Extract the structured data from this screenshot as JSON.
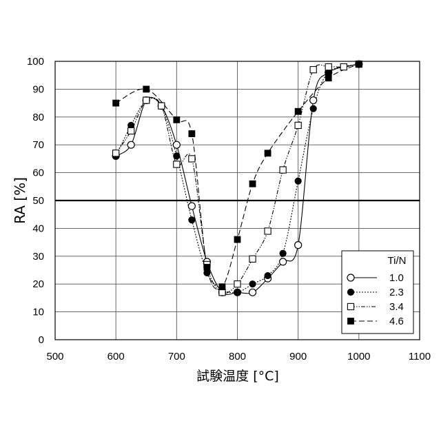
{
  "chart_data": {
    "type": "line",
    "xlabel": "試験温度 [°C]",
    "ylabel": "RA [%]",
    "xlim": [
      500,
      1100
    ],
    "ylim": [
      0,
      100
    ],
    "xticks": [
      "500",
      "600",
      "700",
      "800",
      "900",
      "1000",
      "1100"
    ],
    "yticks": [
      "0",
      "10",
      "20",
      "30",
      "40",
      "50",
      "60",
      "70",
      "80",
      "90",
      "100"
    ],
    "grid": true,
    "reference_line_y": 50,
    "legend": {
      "title": "Ti/N",
      "position": "bottom-right"
    },
    "series": [
      {
        "name": "1.0",
        "marker": "open-circle",
        "line": "solid",
        "points": [
          [
            600,
            66
          ],
          [
            625,
            70
          ],
          [
            650,
            86
          ],
          [
            675,
            84
          ],
          [
            700,
            70
          ],
          [
            725,
            48
          ],
          [
            750,
            28
          ],
          [
            775,
            17
          ],
          [
            800,
            17
          ],
          [
            825,
            17
          ],
          [
            850,
            22
          ],
          [
            875,
            28
          ],
          [
            900,
            34
          ],
          [
            925,
            86
          ],
          [
            950,
            96
          ],
          [
            1000,
            99
          ]
        ]
      },
      {
        "name": "2.3",
        "marker": "filled-circle",
        "line": "dotted",
        "points": [
          [
            600,
            66
          ],
          [
            625,
            77
          ],
          [
            650,
            86
          ],
          [
            675,
            84
          ],
          [
            700,
            66
          ],
          [
            725,
            43
          ],
          [
            750,
            24
          ],
          [
            775,
            18
          ],
          [
            800,
            17
          ],
          [
            825,
            20
          ],
          [
            850,
            23
          ],
          [
            875,
            31
          ],
          [
            900,
            57
          ],
          [
            925,
            83
          ],
          [
            950,
            96
          ],
          [
            1000,
            99
          ]
        ]
      },
      {
        "name": "3.4",
        "marker": "open-square",
        "line": "dash-dot-dot",
        "points": [
          [
            600,
            67
          ],
          [
            625,
            75
          ],
          [
            650,
            86
          ],
          [
            675,
            84
          ],
          [
            700,
            63
          ],
          [
            725,
            65
          ],
          [
            750,
            27
          ],
          [
            775,
            17
          ],
          [
            800,
            20
          ],
          [
            825,
            29
          ],
          [
            850,
            39
          ],
          [
            875,
            61
          ],
          [
            900,
            77
          ],
          [
            925,
            97
          ],
          [
            950,
            98
          ],
          [
            975,
            98
          ],
          [
            1000,
            99
          ]
        ]
      },
      {
        "name": "4.6",
        "marker": "filled-square",
        "line": "dashed",
        "points": [
          [
            600,
            85
          ],
          [
            650,
            90
          ],
          [
            700,
            79
          ],
          [
            725,
            74
          ],
          [
            750,
            26
          ],
          [
            775,
            19
          ],
          [
            800,
            36
          ],
          [
            825,
            56
          ],
          [
            850,
            67
          ],
          [
            900,
            82
          ],
          [
            950,
            94
          ],
          [
            1000,
            99
          ]
        ]
      }
    ]
  }
}
